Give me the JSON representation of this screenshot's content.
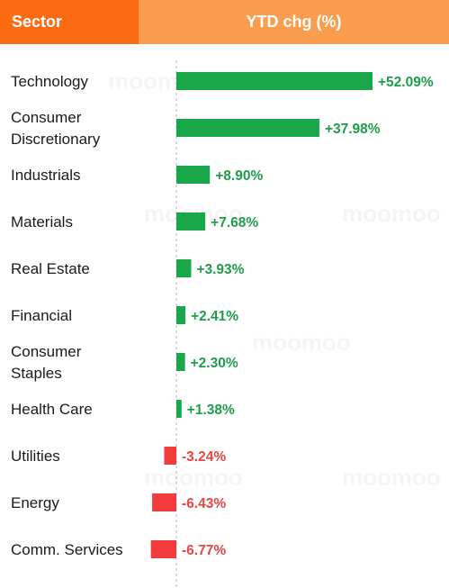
{
  "header": {
    "sector_label": "Sector",
    "ytd_label": "YTD chg (%)"
  },
  "watermark": {
    "text": "moomoo"
  },
  "colors": {
    "header_left": "#fb6b12",
    "header_right": "#fb9d4e",
    "positive": "#1aa64a",
    "negative": "#f23c3c",
    "positive_text": "#1e9e49",
    "negative_text": "#e84545"
  },
  "chart_data": {
    "type": "bar",
    "orientation": "horizontal",
    "categories": [
      "Technology",
      "Consumer Discretionary",
      "Industrials",
      "Materials",
      "Real Estate",
      "Financial",
      "Consumer Staples",
      "Health Care",
      "Utilities",
      "Energy",
      "Comm. Services"
    ],
    "category_lines": [
      [
        "Technology"
      ],
      [
        "Consumer",
        "Discretionary"
      ],
      [
        "Industrials"
      ],
      [
        "Materials"
      ],
      [
        "Real Estate"
      ],
      [
        "Financial"
      ],
      [
        "Consumer",
        "Staples"
      ],
      [
        "Health Care"
      ],
      [
        "Utilities"
      ],
      [
        "Energy"
      ],
      [
        "Comm. Services"
      ]
    ],
    "values": [
      52.09,
      37.98,
      8.9,
      7.68,
      3.93,
      2.41,
      2.3,
      1.38,
      -3.24,
      -6.43,
      -6.77
    ],
    "value_labels": [
      "+52.09%",
      "+37.98%",
      "+8.90%",
      "+7.68%",
      "+3.93%",
      "+2.41%",
      "+2.30%",
      "+1.38%",
      "-3.24%",
      "-6.43%",
      "-6.77%"
    ],
    "baseline": 0,
    "axis_style": "dashed"
  }
}
